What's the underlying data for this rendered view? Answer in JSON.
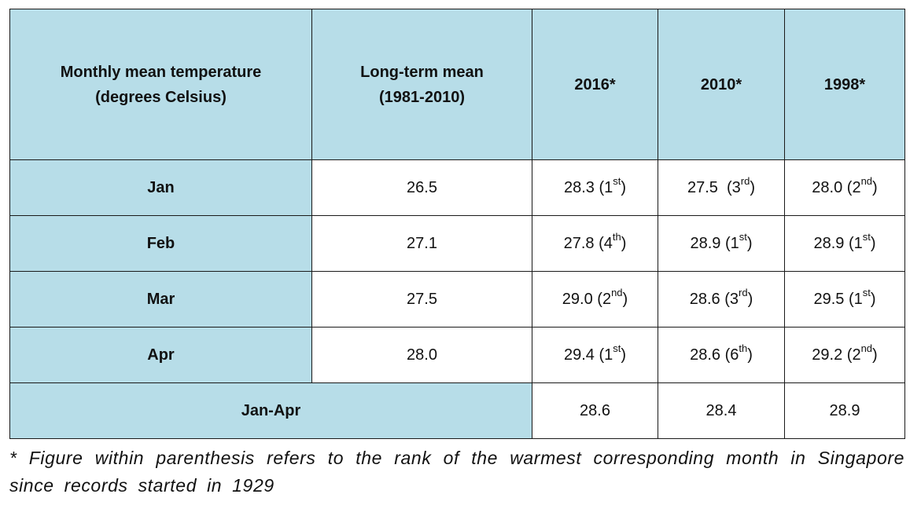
{
  "table": {
    "header": {
      "col1_line1": "Monthly mean temperature",
      "col1_line2": "(degrees Celsius)",
      "col2_line1": "Long-term mean",
      "col2_line2": "(1981-2010)",
      "col3": "2016*",
      "col4": "2010*",
      "col5": "1998*"
    },
    "rows": [
      {
        "label": "Jan",
        "long_term": "26.5",
        "y2016": {
          "value": "28.3 (1",
          "rank": "st",
          "close": ")"
        },
        "y2010": {
          "value": "27.5  (3",
          "rank": "rd",
          "close": ")"
        },
        "y1998": {
          "value": "28.0 (2",
          "rank": "nd",
          "close": ")"
        }
      },
      {
        "label": "Feb",
        "long_term": "27.1",
        "y2016": {
          "value": "27.8 (4",
          "rank": "th",
          "close": ")"
        },
        "y2010": {
          "value": "28.9 (1",
          "rank": "st",
          "close": ")"
        },
        "y1998": {
          "value": "28.9 (1",
          "rank": "st",
          "close": ")"
        }
      },
      {
        "label": "Mar",
        "long_term": "27.5",
        "y2016": {
          "value": "29.0 (2",
          "rank": "nd",
          "close": ")"
        },
        "y2010": {
          "value": "28.6 (3",
          "rank": "rd",
          "close": ")"
        },
        "y1998": {
          "value": "29.5 (1",
          "rank": "st",
          "close": ")"
        }
      },
      {
        "label": "Apr",
        "long_term": "28.0",
        "y2016": {
          "value": "29.4 (1",
          "rank": "st",
          "close": ")"
        },
        "y2010": {
          "value": "28.6 (6",
          "rank": "th",
          "close": ")"
        },
        "y1998": {
          "value": "29.2 (2",
          "rank": "nd",
          "close": ")"
        }
      }
    ],
    "summary": {
      "label": "Jan-Apr",
      "y2016": "28.6",
      "y2010": "28.4",
      "y1998": "28.9"
    }
  },
  "footnote": "* Figure within parenthesis refers to the rank of the warmest corresponding month in Singapore since records started in 1929",
  "colors": {
    "header_bg": "#b7dde8",
    "border": "#1a1a1a",
    "cell_bg": "#ffffff"
  }
}
